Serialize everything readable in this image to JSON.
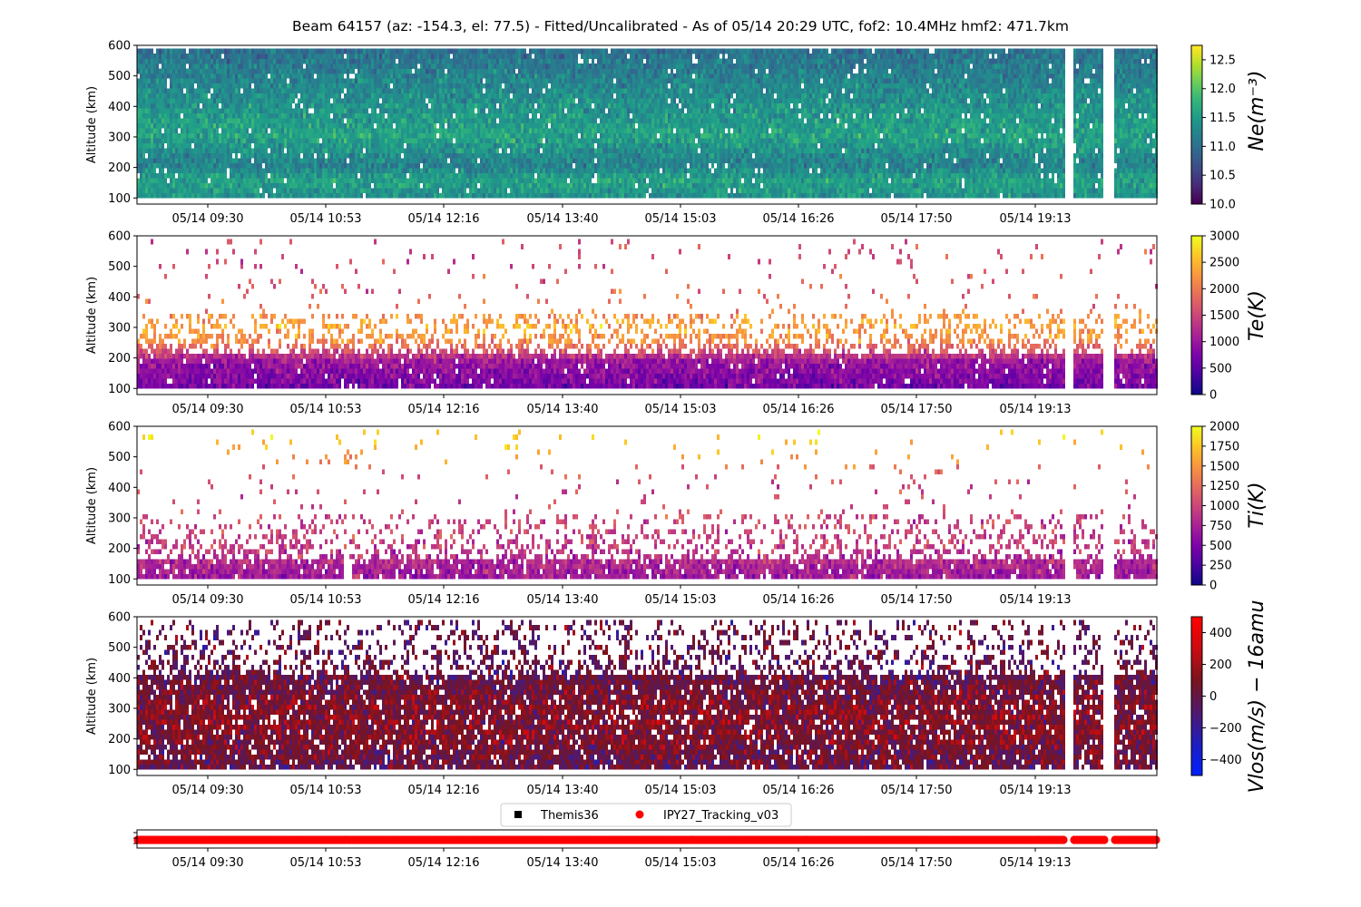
{
  "figure": {
    "title": "Beam 64157 (az: -154.3, el: 77.5) - Fitted/Uncalibrated - As of 05/14 20:29 UTC, fof2: 10.4MHz  hmf2: 471.7km"
  },
  "x_ticks": [
    "05/14 09:30",
    "05/14 10:53",
    "05/14 12:16",
    "05/14 13:40",
    "05/14 15:03",
    "05/14 16:26",
    "05/14 17:50",
    "05/14 19:13"
  ],
  "y_ticks": [
    "100",
    "200",
    "300",
    "400",
    "500",
    "600"
  ],
  "ylabel": "Altitude (km)",
  "legend": {
    "placement": "above-bottom-panel",
    "entries": [
      {
        "name": "Themis36",
        "marker": "square",
        "color": "#000000"
      },
      {
        "name": "IPY27_Tracking_v03",
        "marker": "circle",
        "color": "#ff0000"
      }
    ]
  },
  "chart_data": [
    {
      "type": "heatmap",
      "variable": "Ne",
      "cbar_label": "Ne(m⁻³)",
      "colormap": "viridis",
      "clim": [
        10.0,
        12.75
      ],
      "cbar_ticks": [
        "10.0",
        "10.5",
        "11.0",
        "11.5",
        "12.0",
        "12.5"
      ],
      "cbar_tick_values": [
        10.0,
        10.5,
        11.0,
        11.5,
        12.0,
        12.5
      ],
      "ylim": [
        80,
        600
      ],
      "data_altitude_range": [
        100,
        590
      ],
      "typical_value_by_altitude": [
        [
          100,
          11.4
        ],
        [
          150,
          11.6
        ],
        [
          200,
          11.2
        ],
        [
          300,
          11.6
        ],
        [
          400,
          11.4
        ],
        [
          500,
          11.2
        ],
        [
          590,
          11.0
        ]
      ],
      "coverage": 0.97
    },
    {
      "type": "heatmap",
      "variable": "Te",
      "cbar_label": "Te(K)",
      "colormap": "plasma",
      "clim": [
        0,
        3000
      ],
      "cbar_ticks": [
        "0",
        "500",
        "1000",
        "1500",
        "2000",
        "2500",
        "3000"
      ],
      "cbar_tick_values": [
        0,
        500,
        1000,
        1500,
        2000,
        2500,
        3000
      ],
      "ylim": [
        80,
        600
      ],
      "data_altitude_range": [
        100,
        590
      ],
      "typical_value_by_altitude": [
        [
          100,
          700
        ],
        [
          180,
          1000
        ],
        [
          250,
          2200
        ],
        [
          300,
          2400
        ],
        [
          400,
          1800
        ],
        [
          500,
          1600
        ]
      ],
      "coverage": 0.55
    },
    {
      "type": "heatmap",
      "variable": "Ti",
      "cbar_label": "Ti(K)",
      "colormap": "plasma",
      "clim": [
        0,
        2000
      ],
      "cbar_ticks": [
        "0",
        "250",
        "500",
        "750",
        "1000",
        "1250",
        "1500",
        "1750",
        "2000"
      ],
      "cbar_tick_values": [
        0,
        250,
        500,
        750,
        1000,
        1250,
        1500,
        1750,
        2000
      ],
      "ylim": [
        80,
        600
      ],
      "data_altitude_range": [
        100,
        590
      ],
      "typical_value_by_altitude": [
        [
          100,
          700
        ],
        [
          150,
          800
        ],
        [
          200,
          950
        ],
        [
          300,
          1000
        ],
        [
          400,
          1000
        ],
        [
          550,
          1800
        ]
      ],
      "coverage": 0.35
    },
    {
      "type": "heatmap",
      "variable": "Vlos",
      "cbar_label": "Vlos(m/s) − 16amu",
      "colormap": "blue-darkred-red",
      "clim": [
        -500,
        500
      ],
      "cbar_ticks": [
        "−400",
        "−200",
        "0",
        "200",
        "400"
      ],
      "cbar_tick_values": [
        -400,
        -200,
        0,
        200,
        400
      ],
      "ylim": [
        80,
        600
      ],
      "data_altitude_range": [
        100,
        590
      ],
      "typical_value_by_altitude": [
        [
          100,
          0
        ],
        [
          200,
          100
        ],
        [
          300,
          100
        ],
        [
          400,
          0
        ],
        [
          500,
          0
        ]
      ],
      "coverage": 0.6
    },
    {
      "type": "scatter",
      "variable": "experiment-mode",
      "series": [
        {
          "name": "IPY27_Tracking_v03",
          "color": "#ff0000",
          "coverage": "continuous"
        }
      ]
    }
  ]
}
